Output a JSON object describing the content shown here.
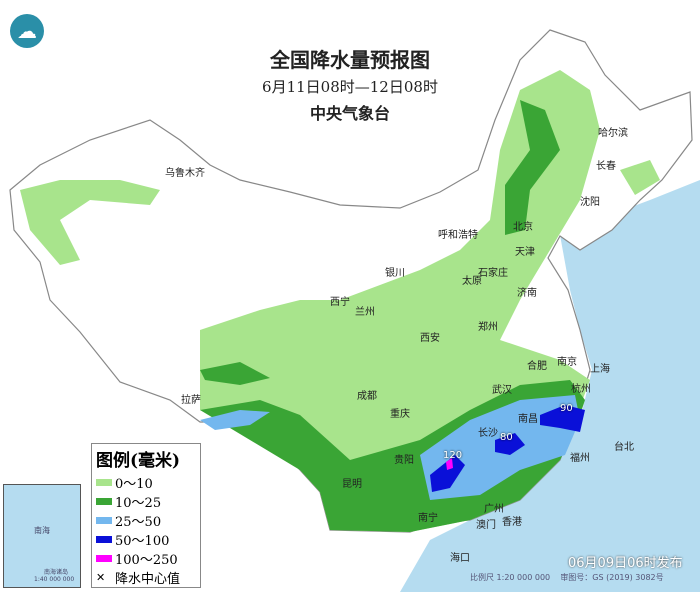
{
  "header": {
    "title": "全国降水量预报图",
    "period": "6月11日08时—12日08时",
    "agency": "中央气象台",
    "logo_icon": "cma-logo"
  },
  "legend": {
    "title": "图例(毫米)",
    "items": [
      {
        "label": "0～10",
        "color": "#a8e48c"
      },
      {
        "label": "10～25",
        "color": "#3aa535"
      },
      {
        "label": "25～50",
        "color": "#73b7ee"
      },
      {
        "label": "50～100",
        "color": "#0a10d8"
      },
      {
        "label": "100～250",
        "color": "#ff00ff"
      }
    ],
    "center_label": "降水中心值",
    "center_icon": "x-mark-icon"
  },
  "rain_centers": [
    "120",
    "80",
    "90"
  ],
  "cities": [
    "乌鲁木齐",
    "哈尔滨",
    "长春",
    "沈阳",
    "北京",
    "天津",
    "呼和浩特",
    "银川",
    "石家庄",
    "太原",
    "济南",
    "西宁",
    "兰州",
    "郑州",
    "西安",
    "合肥",
    "南京",
    "上海",
    "武汉",
    "杭州",
    "成都",
    "重庆",
    "拉萨",
    "长沙",
    "南昌",
    "福州",
    "台北",
    "贵阳",
    "昆明",
    "南宁",
    "广州",
    "澳门",
    "香港",
    "海口"
  ],
  "inset": {
    "label": "南海诸岛",
    "sea": "南海",
    "scale": "1:40 000 000"
  },
  "footer": {
    "issued": "06月09日06时发布",
    "scale": "比例尺 1:20 000 000",
    "approval": "审图号：GS (2019) 3082号"
  },
  "colors": {
    "sea": "#b5dcf0",
    "land": "#ffffff",
    "border": "#999999"
  }
}
